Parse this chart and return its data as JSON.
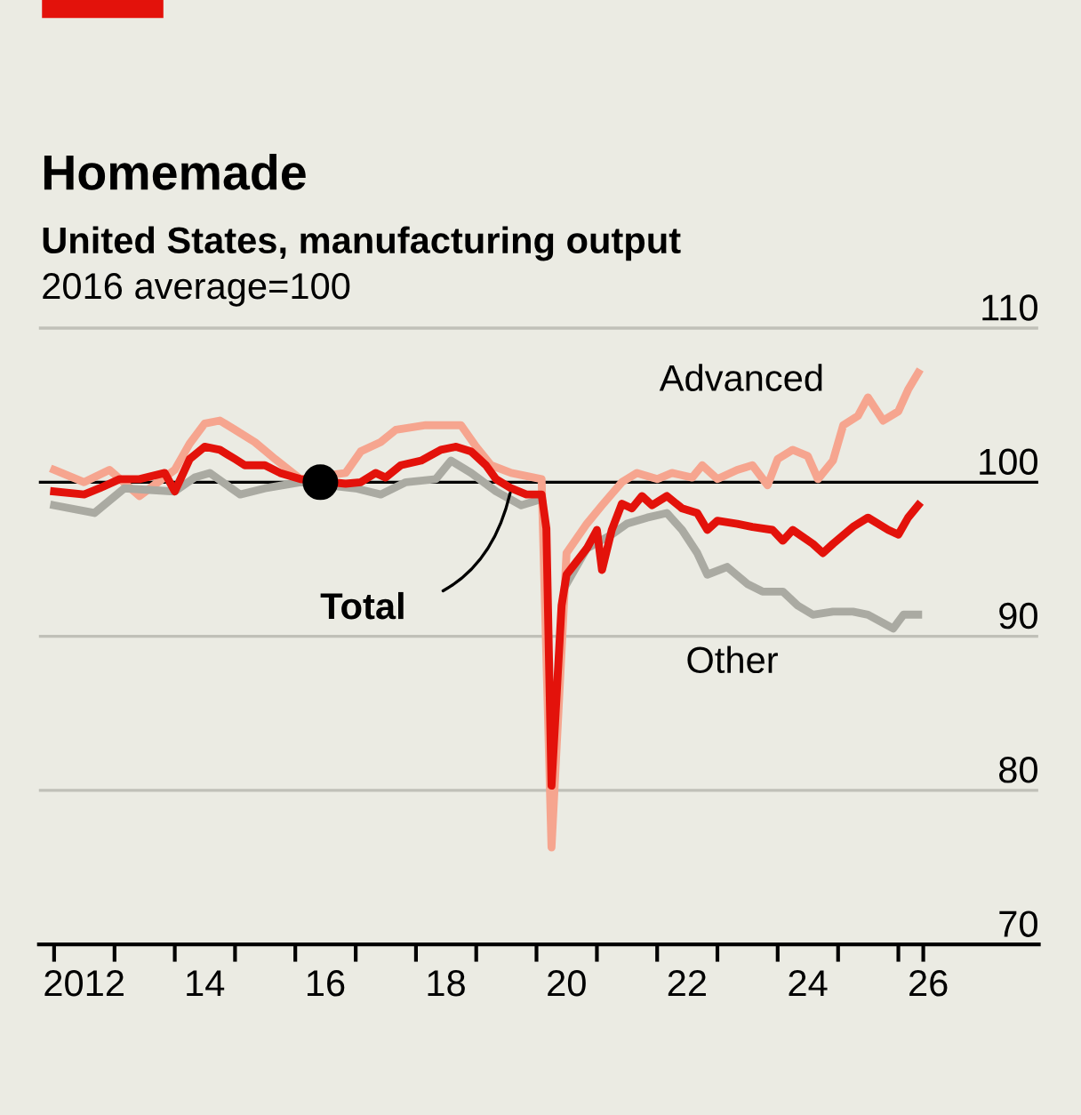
{
  "chart_data": {
    "type": "line",
    "title": "Homemade",
    "subtitle": "United States, manufacturing output",
    "ylabel": "2016 average=100",
    "xlim": [
      "2011-10-01",
      "2028-05-01"
    ],
    "ylim": [
      70,
      114
    ],
    "yticks": [
      70,
      80,
      90,
      100,
      110
    ],
    "xticks": [
      {
        "value": "2012-01-01",
        "label": null
      },
      {
        "value": "2013-01-01",
        "label": null
      },
      {
        "value": "2014-01-01",
        "label": null
      },
      {
        "value": "2015-01-01",
        "label": null
      },
      {
        "value": "2016-01-01",
        "label": null
      },
      {
        "value": "2017-01-01",
        "label": null
      },
      {
        "value": "2018-01-01",
        "label": null
      },
      {
        "value": "2019-01-01",
        "label": null
      },
      {
        "value": "2020-01-01",
        "label": null
      },
      {
        "value": "2021-01-01",
        "label": null
      },
      {
        "value": "2022-01-01",
        "label": null
      },
      {
        "value": "2023-01-01",
        "label": null
      },
      {
        "value": "2024-01-01",
        "label": null
      },
      {
        "value": "2025-01-01",
        "label": null
      },
      {
        "value": "2026-01-01",
        "label": null
      },
      {
        "value": "2026-06-01",
        "label": null
      },
      {
        "value": "2012-07-01",
        "label": "2012"
      },
      {
        "value": "2014-07-01",
        "label": "14"
      },
      {
        "value": "2016-07-01",
        "label": "16"
      },
      {
        "value": "2018-07-01",
        "label": "18"
      },
      {
        "value": "2020-07-01",
        "label": "20"
      },
      {
        "value": "2022-07-01",
        "label": "22"
      },
      {
        "value": "2024-07-01",
        "label": "24"
      },
      {
        "value": "2026-07-01",
        "label": "26"
      }
    ],
    "grid": "y",
    "legend": false,
    "marker": "none",
    "line_style": "solid",
    "ref_lines": [
      {
        "axis": "y",
        "value": 100,
        "color": "#000000"
      }
    ],
    "series": [
      {
        "name": "Advanced",
        "color": "#f6a58f",
        "x": [
          "2012-01",
          "2012-07",
          "2012-12",
          "2013-06",
          "2014-01",
          "2014-04",
          "2014-07",
          "2014-10",
          "2015-01",
          "2015-05",
          "2015-09",
          "2016-02",
          "2016-11",
          "2017-02",
          "2017-06",
          "2017-09",
          "2018-03",
          "2018-06",
          "2018-10",
          "2019-01",
          "2019-04",
          "2019-08",
          "2020-02",
          "2020-04",
          "2020-07",
          "2020-11",
          "2021-02",
          "2021-06",
          "2021-09",
          "2022-01",
          "2022-04",
          "2022-08",
          "2022-10",
          "2023-01",
          "2023-05",
          "2023-08",
          "2023-11",
          "2024-01",
          "2024-04",
          "2024-07",
          "2024-09",
          "2024-12",
          "2025-02",
          "2025-05",
          "2025-07",
          "2025-10",
          "2026-01",
          "2026-03",
          "2026-05"
        ],
        "values": [
          100.8,
          100,
          100.8,
          99.1,
          100.8,
          102.5,
          103.8,
          104.0,
          103.4,
          102.6,
          101.5,
          100.2,
          100.6,
          102.0,
          102.6,
          103.4,
          103.7,
          103.7,
          103.7,
          102.3,
          101.1,
          100.6,
          100.2,
          76.3,
          95.4,
          97.3,
          98.5,
          100,
          100.6,
          100.2,
          100.6,
          100.3,
          101.1,
          100.2,
          100.8,
          101.1,
          99.8,
          101.5,
          102.1,
          101.7,
          100.2,
          101.4,
          103.7,
          104.3,
          105.5,
          104.0,
          104.6,
          106.0,
          107.1
        ]
      },
      {
        "name": "Other",
        "color": "#aaaaa2",
        "x": [
          "2012-01",
          "2012-09",
          "2013-03",
          "2014-01",
          "2014-05",
          "2014-08",
          "2015-02",
          "2015-07",
          "2016-02",
          "2017-01",
          "2017-06",
          "2017-11",
          "2018-05",
          "2018-08",
          "2018-12",
          "2019-05",
          "2019-10",
          "2020-02",
          "2020-04",
          "2020-07",
          "2020-11",
          "2021-04",
          "2021-07",
          "2021-11",
          "2022-03",
          "2022-06",
          "2022-09",
          "2022-11",
          "2023-03",
          "2023-07",
          "2023-10",
          "2024-02",
          "2024-05",
          "2024-08",
          "2024-12",
          "2025-04",
          "2025-07",
          "2025-12",
          "2026-02",
          "2026-05"
        ],
        "values": [
          98.5,
          98.0,
          99.6,
          99.4,
          100.3,
          100.6,
          99.2,
          99.6,
          100,
          99.6,
          99.2,
          100,
          100.2,
          101.4,
          100.6,
          99.4,
          98.5,
          98.9,
          null,
          93.4,
          95.7,
          96.6,
          97.3,
          97.7,
          98.0,
          96.9,
          95.4,
          94.0,
          94.5,
          93.4,
          92.9,
          92.9,
          92.0,
          91.4,
          91.6,
          91.6,
          91.4,
          90.5,
          91.4,
          91.4
        ]
      },
      {
        "name": "Total",
        "color": "#e3120b",
        "x": [
          "2012-01",
          "2012-07",
          "2012-10",
          "2013-02",
          "2013-06",
          "2013-11",
          "2014-01",
          "2014-04",
          "2014-07",
          "2014-10",
          "2015-01",
          "2015-03",
          "2015-07",
          "2015-10",
          "2016-02",
          "2016-11",
          "2017-02",
          "2017-05",
          "2017-07",
          "2017-10",
          "2018-02",
          "2018-06",
          "2018-09",
          "2018-12",
          "2019-03",
          "2019-05",
          "2019-08",
          "2019-11",
          "2020-02",
          "2020-03",
          "2020-04",
          "2020-05",
          "2020-06",
          "2020-07",
          "2020-11",
          "2021-01",
          "2021-02",
          "2021-04",
          "2021-06",
          "2021-08",
          "2021-10",
          "2021-12",
          "2022-03",
          "2022-06",
          "2022-09",
          "2022-11",
          "2023-01",
          "2023-05",
          "2023-08",
          "2023-12",
          "2024-02",
          "2024-04",
          "2024-08",
          "2024-10",
          "2024-12",
          "2025-04",
          "2025-07",
          "2025-11",
          "2026-01",
          "2026-03",
          "2026-05"
        ],
        "values": [
          99.4,
          99.2,
          99.6,
          100.2,
          100.2,
          100.6,
          99.4,
          101.5,
          102.3,
          102.1,
          101.5,
          101.1,
          101.1,
          100.6,
          100.2,
          99.9,
          100,
          100.6,
          100.3,
          101.1,
          101.4,
          102.1,
          102.3,
          102.0,
          101.1,
          100.2,
          99.6,
          99.2,
          99.2,
          97.0,
          80.3,
          86.0,
          92.0,
          94.0,
          95.7,
          96.9,
          94.3,
          96.9,
          98.6,
          98.3,
          99.1,
          98.5,
          99.1,
          98.3,
          98.0,
          96.9,
          97.5,
          97.3,
          97.1,
          96.9,
          96.2,
          96.9,
          96.0,
          95.4,
          96.0,
          97.1,
          97.7,
          96.9,
          96.6,
          97.7,
          98.5
        ]
      },
      {
        "type": "scatter",
        "color": "#000000",
        "marker": "circle",
        "x": [
          "2016-06"
        ],
        "values": [
          100
        ]
      }
    ]
  }
}
